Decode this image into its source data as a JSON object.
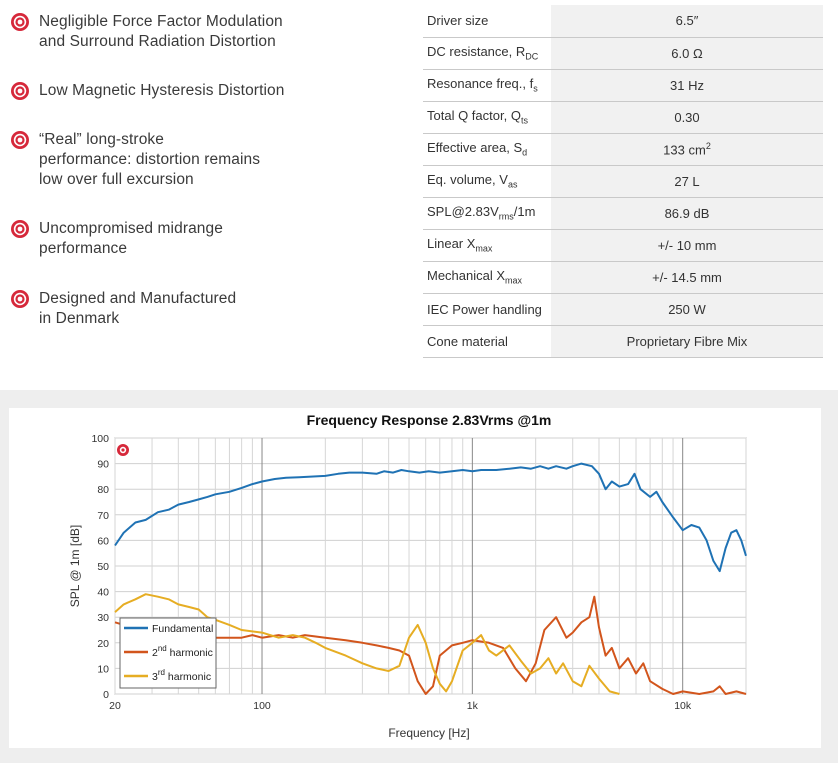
{
  "features": [
    {
      "text": "Negligible Force Factor Modulation\nand Surround Radiation Distortion"
    },
    {
      "text": "Low Magnetic Hysteresis Distortion"
    },
    {
      "text": "“Real” long-stroke\nperformance: distortion remains\nlow over full excursion"
    },
    {
      "text": "Uncompromised midrange\nperformance"
    },
    {
      "text": "Designed and Manufactured\nin Denmark"
    }
  ],
  "specs": [
    {
      "label": "Driver size",
      "value": "6.5″"
    },
    {
      "label": "DC resistance, R",
      "label_sub": "DC",
      "value": "6.0 Ω"
    },
    {
      "label": "Resonance freq., f",
      "label_sub": "s",
      "value": "31 Hz"
    },
    {
      "label": "Total Q factor, Q",
      "label_sub": "ts",
      "value": "0.30"
    },
    {
      "label": "Effective area, S",
      "label_sub": "d",
      "value": "133 cm",
      "value_sup": "2"
    },
    {
      "label": "Eq. volume, V",
      "label_sub": "as",
      "value": "27 L"
    },
    {
      "label": "SPL@2.83V",
      "label_sub": "rms",
      "label_after": "/1m",
      "value": "86.9 dB"
    },
    {
      "label": "Linear X",
      "label_sub": "max",
      "value": "+/- 10 mm"
    },
    {
      "label": "Mechanical X",
      "label_sub": "max",
      "value": "+/- 14.5 mm"
    },
    {
      "label": "IEC Power handling",
      "value": "250 W"
    },
    {
      "label": "Cone material",
      "value": "Proprietary Fibre Mix"
    }
  ],
  "colors": {
    "accent": "#d6283a",
    "fundamental": "#1f72b4",
    "second": "#d2551c",
    "third": "#e6ad23"
  },
  "chart_data": {
    "type": "line",
    "title": "Frequency Response 2.83Vrms @1m",
    "xlabel": "Frequency [Hz]",
    "ylabel": "SPL @ 1m [dB]",
    "xscale": "log",
    "xlim": [
      20,
      20000
    ],
    "ylim": [
      0,
      100
    ],
    "x_ticks": [
      {
        "value": 20,
        "label": "20"
      },
      {
        "value": 100,
        "label": "100"
      },
      {
        "value": 1000,
        "label": "1k"
      },
      {
        "value": 10000,
        "label": "10k"
      }
    ],
    "y_ticks": [
      0,
      10,
      20,
      30,
      40,
      50,
      60,
      70,
      80,
      90,
      100
    ],
    "legend": "lower-left",
    "series": [
      {
        "name": "Fundamental",
        "points": [
          [
            20,
            58
          ],
          [
            22,
            63
          ],
          [
            25,
            67
          ],
          [
            28,
            68
          ],
          [
            32,
            71
          ],
          [
            36,
            72
          ],
          [
            40,
            74
          ],
          [
            45,
            75
          ],
          [
            50,
            76
          ],
          [
            55,
            77
          ],
          [
            60,
            78
          ],
          [
            70,
            79
          ],
          [
            80,
            80.5
          ],
          [
            90,
            82
          ],
          [
            100,
            83
          ],
          [
            115,
            84
          ],
          [
            130,
            84.5
          ],
          [
            150,
            84.7
          ],
          [
            180,
            85
          ],
          [
            200,
            85.2
          ],
          [
            230,
            86
          ],
          [
            260,
            86.5
          ],
          [
            300,
            86.5
          ],
          [
            350,
            86
          ],
          [
            380,
            87
          ],
          [
            420,
            86.5
          ],
          [
            460,
            87.5
          ],
          [
            500,
            87
          ],
          [
            560,
            86.5
          ],
          [
            620,
            87
          ],
          [
            700,
            86.5
          ],
          [
            800,
            87
          ],
          [
            900,
            87.5
          ],
          [
            1000,
            87
          ],
          [
            1100,
            87.5
          ],
          [
            1300,
            87.5
          ],
          [
            1500,
            88
          ],
          [
            1700,
            88.5
          ],
          [
            1900,
            88
          ],
          [
            2100,
            89
          ],
          [
            2300,
            88
          ],
          [
            2500,
            89
          ],
          [
            2800,
            88
          ],
          [
            3000,
            89
          ],
          [
            3300,
            90
          ],
          [
            3700,
            89
          ],
          [
            4000,
            86
          ],
          [
            4300,
            80
          ],
          [
            4600,
            83
          ],
          [
            5000,
            81
          ],
          [
            5500,
            82
          ],
          [
            5900,
            86
          ],
          [
            6300,
            80
          ],
          [
            7000,
            77
          ],
          [
            7500,
            79
          ],
          [
            8000,
            75
          ],
          [
            9000,
            69
          ],
          [
            10000,
            64
          ],
          [
            11000,
            66
          ],
          [
            12000,
            65
          ],
          [
            13000,
            60
          ],
          [
            14000,
            52
          ],
          [
            15000,
            48
          ],
          [
            16000,
            57
          ],
          [
            17000,
            63
          ],
          [
            18000,
            64
          ],
          [
            19000,
            60
          ],
          [
            20000,
            54
          ]
        ]
      },
      {
        "name": "2nd harmonic",
        "points": [
          [
            20,
            28
          ],
          [
            22,
            27
          ],
          [
            25,
            26
          ],
          [
            28,
            25
          ],
          [
            32,
            26
          ],
          [
            36,
            25
          ],
          [
            40,
            24
          ],
          [
            45,
            25
          ],
          [
            50,
            23
          ],
          [
            55,
            23
          ],
          [
            60,
            22
          ],
          [
            70,
            22
          ],
          [
            80,
            22
          ],
          [
            90,
            23
          ],
          [
            100,
            22
          ],
          [
            120,
            23
          ],
          [
            140,
            22
          ],
          [
            160,
            23
          ],
          [
            200,
            22
          ],
          [
            250,
            21
          ],
          [
            300,
            20
          ],
          [
            350,
            19
          ],
          [
            400,
            18
          ],
          [
            450,
            17
          ],
          [
            500,
            15
          ],
          [
            550,
            5
          ],
          [
            600,
            0
          ],
          [
            650,
            3
          ],
          [
            700,
            15
          ],
          [
            800,
            19
          ],
          [
            900,
            20
          ],
          [
            1000,
            21
          ],
          [
            1200,
            20
          ],
          [
            1400,
            18
          ],
          [
            1600,
            10
          ],
          [
            1800,
            5
          ],
          [
            2000,
            12
          ],
          [
            2200,
            25
          ],
          [
            2500,
            30
          ],
          [
            2800,
            22
          ],
          [
            3000,
            24
          ],
          [
            3300,
            28
          ],
          [
            3600,
            30
          ],
          [
            3800,
            38
          ],
          [
            4000,
            26
          ],
          [
            4300,
            15
          ],
          [
            4600,
            18
          ],
          [
            5000,
            10
          ],
          [
            5500,
            14
          ],
          [
            6000,
            8
          ],
          [
            6500,
            12
          ],
          [
            7000,
            5
          ],
          [
            8000,
            2
          ],
          [
            9000,
            0
          ],
          [
            10000,
            1
          ],
          [
            12000,
            0
          ],
          [
            14000,
            1
          ],
          [
            15000,
            3
          ],
          [
            16000,
            0
          ],
          [
            18000,
            1
          ],
          [
            20000,
            0
          ]
        ]
      },
      {
        "name": "3rd harmonic",
        "points": [
          [
            20,
            32
          ],
          [
            22,
            35
          ],
          [
            25,
            37
          ],
          [
            28,
            39
          ],
          [
            32,
            38
          ],
          [
            36,
            37
          ],
          [
            40,
            35
          ],
          [
            45,
            34
          ],
          [
            50,
            33
          ],
          [
            55,
            30
          ],
          [
            60,
            29
          ],
          [
            70,
            27
          ],
          [
            80,
            25
          ],
          [
            100,
            24
          ],
          [
            120,
            22
          ],
          [
            140,
            23
          ],
          [
            160,
            22
          ],
          [
            180,
            20
          ],
          [
            200,
            18
          ],
          [
            250,
            15
          ],
          [
            300,
            12
          ],
          [
            350,
            10
          ],
          [
            400,
            9
          ],
          [
            450,
            11
          ],
          [
            500,
            22
          ],
          [
            550,
            27
          ],
          [
            600,
            20
          ],
          [
            650,
            10
          ],
          [
            700,
            4
          ],
          [
            750,
            1
          ],
          [
            800,
            5
          ],
          [
            900,
            17
          ],
          [
            1000,
            20
          ],
          [
            1100,
            23
          ],
          [
            1200,
            17
          ],
          [
            1300,
            15
          ],
          [
            1500,
            19
          ],
          [
            1700,
            13
          ],
          [
            1900,
            8
          ],
          [
            2100,
            10
          ],
          [
            2300,
            14
          ],
          [
            2500,
            8
          ],
          [
            2700,
            12
          ],
          [
            3000,
            5
          ],
          [
            3300,
            3
          ],
          [
            3600,
            11
          ],
          [
            4000,
            6
          ],
          [
            4500,
            1
          ],
          [
            5000,
            0
          ]
        ]
      }
    ]
  }
}
